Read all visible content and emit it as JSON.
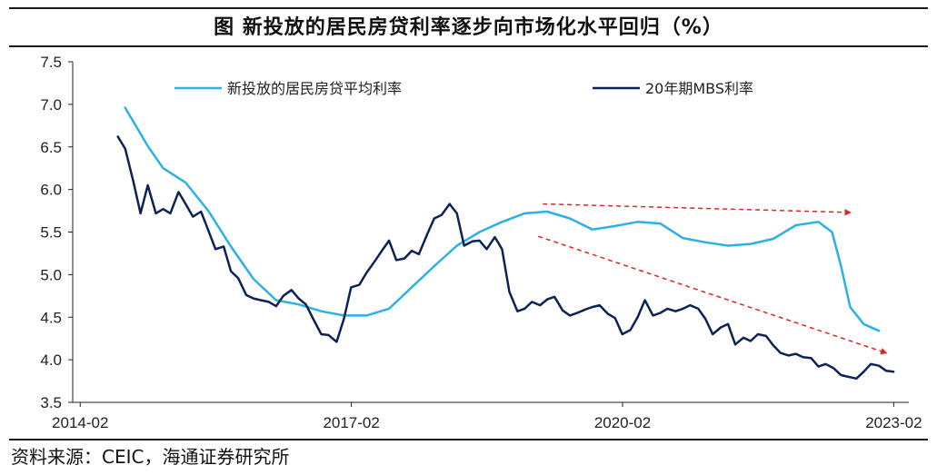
{
  "title": "图    新投放的居民房贷利率逐步向市场化水平回归（%）",
  "source": "资料来源：CEIC，海通证券研究所",
  "colors": {
    "mortgage": "#2bb0e8",
    "mbs": "#0d2257",
    "trend": "#e02424",
    "axis": "#222222"
  },
  "chart_data": {
    "type": "line",
    "title": "图    新投放的居民房贷利率逐步向市场化水平回归（%）",
    "xlabel": "",
    "ylabel": "",
    "xlim": [
      2014.0,
      2023.25
    ],
    "ylim": [
      3.5,
      7.5
    ],
    "y_ticks": [
      "7.5",
      "7.0",
      "6.5",
      "6.0",
      "5.5",
      "5.0",
      "4.5",
      "4.0",
      "3.5"
    ],
    "x_ticks": [
      {
        "x": 2014.083,
        "label": "2014-02"
      },
      {
        "x": 2017.083,
        "label": "2017-02"
      },
      {
        "x": 2020.083,
        "label": "2020-02"
      },
      {
        "x": 2023.083,
        "label": "2023-02"
      }
    ],
    "grid": false,
    "legend": "top",
    "series": [
      {
        "name": "新投放的居民房贷平均利率",
        "color": "#2bb0e8",
        "points": [
          [
            2014.58,
            6.96
          ],
          [
            2014.83,
            6.51
          ],
          [
            2015.0,
            6.25
          ],
          [
            2015.25,
            6.08
          ],
          [
            2015.5,
            5.75
          ],
          [
            2015.75,
            5.33
          ],
          [
            2016.0,
            4.95
          ],
          [
            2016.25,
            4.7
          ],
          [
            2016.5,
            4.65
          ],
          [
            2016.75,
            4.57
          ],
          [
            2017.0,
            4.52
          ],
          [
            2017.25,
            4.52
          ],
          [
            2017.5,
            4.6
          ],
          [
            2017.75,
            4.85
          ],
          [
            2018.0,
            5.1
          ],
          [
            2018.25,
            5.34
          ],
          [
            2018.5,
            5.5
          ],
          [
            2018.75,
            5.62
          ],
          [
            2019.0,
            5.72
          ],
          [
            2019.25,
            5.74
          ],
          [
            2019.5,
            5.66
          ],
          [
            2019.75,
            5.53
          ],
          [
            2020.0,
            5.57
          ],
          [
            2020.25,
            5.62
          ],
          [
            2020.5,
            5.6
          ],
          [
            2020.75,
            5.43
          ],
          [
            2021.0,
            5.38
          ],
          [
            2021.25,
            5.34
          ],
          [
            2021.5,
            5.36
          ],
          [
            2021.75,
            5.42
          ],
          [
            2022.0,
            5.58
          ],
          [
            2022.25,
            5.62
          ],
          [
            2022.4,
            5.5
          ],
          [
            2022.5,
            5.1
          ],
          [
            2022.6,
            4.62
          ],
          [
            2022.75,
            4.42
          ],
          [
            2022.92,
            4.34
          ]
        ]
      },
      {
        "name": "20年期MBS利率",
        "color": "#0d2257",
        "points": [
          [
            2014.5,
            6.62
          ],
          [
            2014.58,
            6.48
          ],
          [
            2014.67,
            6.1
          ],
          [
            2014.75,
            5.72
          ],
          [
            2014.83,
            6.05
          ],
          [
            2014.92,
            5.72
          ],
          [
            2015.0,
            5.77
          ],
          [
            2015.08,
            5.72
          ],
          [
            2015.17,
            5.97
          ],
          [
            2015.25,
            5.83
          ],
          [
            2015.33,
            5.68
          ],
          [
            2015.42,
            5.74
          ],
          [
            2015.5,
            5.52
          ],
          [
            2015.58,
            5.3
          ],
          [
            2015.67,
            5.33
          ],
          [
            2015.75,
            5.04
          ],
          [
            2015.83,
            4.96
          ],
          [
            2015.92,
            4.76
          ],
          [
            2016.0,
            4.72
          ],
          [
            2016.08,
            4.7
          ],
          [
            2016.17,
            4.68
          ],
          [
            2016.25,
            4.63
          ],
          [
            2016.33,
            4.75
          ],
          [
            2016.42,
            4.82
          ],
          [
            2016.5,
            4.72
          ],
          [
            2016.58,
            4.65
          ],
          [
            2016.67,
            4.46
          ],
          [
            2016.75,
            4.3
          ],
          [
            2016.83,
            4.29
          ],
          [
            2016.92,
            4.21
          ],
          [
            2017.0,
            4.48
          ],
          [
            2017.08,
            4.85
          ],
          [
            2017.17,
            4.88
          ],
          [
            2017.25,
            5.02
          ],
          [
            2017.33,
            5.14
          ],
          [
            2017.42,
            5.28
          ],
          [
            2017.5,
            5.4
          ],
          [
            2017.58,
            5.17
          ],
          [
            2017.67,
            5.19
          ],
          [
            2017.75,
            5.28
          ],
          [
            2017.83,
            5.24
          ],
          [
            2017.92,
            5.47
          ],
          [
            2018.0,
            5.66
          ],
          [
            2018.08,
            5.7
          ],
          [
            2018.17,
            5.83
          ],
          [
            2018.25,
            5.72
          ],
          [
            2018.33,
            5.34
          ],
          [
            2018.42,
            5.39
          ],
          [
            2018.5,
            5.4
          ],
          [
            2018.58,
            5.3
          ],
          [
            2018.67,
            5.44
          ],
          [
            2018.75,
            5.3
          ],
          [
            2018.83,
            4.8
          ],
          [
            2018.92,
            4.57
          ],
          [
            2019.0,
            4.6
          ],
          [
            2019.08,
            4.68
          ],
          [
            2019.17,
            4.64
          ],
          [
            2019.25,
            4.71
          ],
          [
            2019.33,
            4.74
          ],
          [
            2019.42,
            4.58
          ],
          [
            2019.5,
            4.52
          ],
          [
            2019.58,
            4.55
          ],
          [
            2019.67,
            4.59
          ],
          [
            2019.75,
            4.62
          ],
          [
            2019.83,
            4.64
          ],
          [
            2019.92,
            4.54
          ],
          [
            2020.0,
            4.49
          ],
          [
            2020.08,
            4.3
          ],
          [
            2020.17,
            4.35
          ],
          [
            2020.25,
            4.5
          ],
          [
            2020.33,
            4.7
          ],
          [
            2020.42,
            4.52
          ],
          [
            2020.5,
            4.55
          ],
          [
            2020.58,
            4.6
          ],
          [
            2020.67,
            4.57
          ],
          [
            2020.75,
            4.6
          ],
          [
            2020.83,
            4.64
          ],
          [
            2020.92,
            4.6
          ],
          [
            2021.0,
            4.48
          ],
          [
            2021.08,
            4.3
          ],
          [
            2021.17,
            4.38
          ],
          [
            2021.25,
            4.42
          ],
          [
            2021.33,
            4.18
          ],
          [
            2021.42,
            4.26
          ],
          [
            2021.5,
            4.22
          ],
          [
            2021.58,
            4.3
          ],
          [
            2021.67,
            4.28
          ],
          [
            2021.75,
            4.17
          ],
          [
            2021.83,
            4.08
          ],
          [
            2021.92,
            4.05
          ],
          [
            2022.0,
            4.07
          ],
          [
            2022.08,
            4.03
          ],
          [
            2022.17,
            4.02
          ],
          [
            2022.25,
            3.92
          ],
          [
            2022.33,
            3.95
          ],
          [
            2022.42,
            3.9
          ],
          [
            2022.5,
            3.82
          ],
          [
            2022.58,
            3.8
          ],
          [
            2022.67,
            3.78
          ],
          [
            2022.75,
            3.86
          ],
          [
            2022.83,
            3.95
          ],
          [
            2022.92,
            3.93
          ],
          [
            2023.0,
            3.87
          ],
          [
            2023.08,
            3.86
          ]
        ]
      }
    ],
    "annotations": [
      {
        "type": "arrow",
        "from": [
          2019.2,
          5.83
        ],
        "to": [
          2022.6,
          5.73
        ],
        "color": "#e02424",
        "style": "dashed"
      },
      {
        "type": "arrow",
        "from": [
          2019.15,
          5.45
        ],
        "to": [
          2023.0,
          4.08
        ],
        "color": "#e02424",
        "style": "dashed"
      }
    ]
  }
}
